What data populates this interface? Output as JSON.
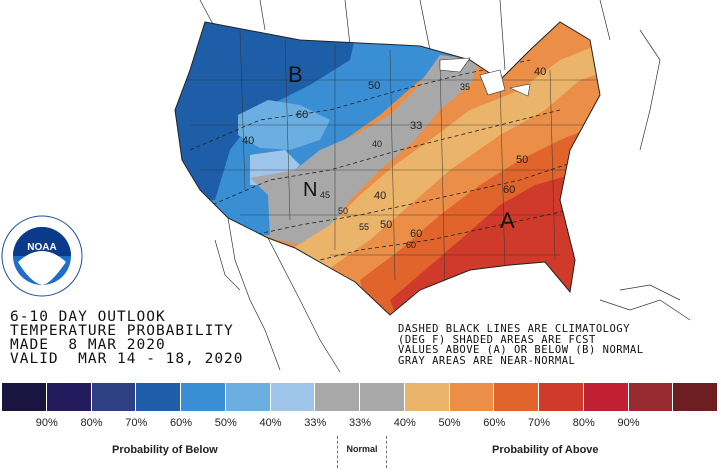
{
  "map": {
    "letters": {
      "below": "B",
      "near_normal": "N",
      "above": "A"
    },
    "contour_labels": [
      "50",
      "60",
      "40",
      "33",
      "40",
      "35",
      "40",
      "50",
      "60",
      "45",
      "50",
      "40",
      "55",
      "50",
      "60",
      "60"
    ],
    "agency_logo_text": "NOAA"
  },
  "title_block": {
    "line1": "6-10 DAY OUTLOOK",
    "line2": "TEMPERATURE PROBABILITY",
    "line3": "MADE  8 MAR 2020",
    "line4": "VALID  MAR 14 - 18, 2020"
  },
  "notes": {
    "line1": "DASHED BLACK LINES ARE CLIMATOLOGY",
    "line2": "(DEG F) SHADED AREAS ARE FCST",
    "line3": "VALUES ABOVE (A) OR BELOW (B) NORMAL",
    "line4": "GRAY AREAS ARE NEAR-NORMAL"
  },
  "legend": {
    "colors": [
      "#1a1440",
      "#241a5e",
      "#2e3f82",
      "#1e5ea8",
      "#3a8fd4",
      "#6aaee2",
      "#9fc6ea",
      "#a8a8a8",
      "#a8a8a8",
      "#eab46a",
      "#ea8e48",
      "#e0642c",
      "#d03a2a",
      "#c02032",
      "#982a32",
      "#6c1e20"
    ],
    "percent_labels": [
      "90%",
      "80%",
      "70%",
      "60%",
      "50%",
      "40%",
      "33%",
      "33%",
      "40%",
      "50%",
      "60%",
      "70%",
      "80%",
      "90%"
    ],
    "below_label": "Probability of Below",
    "normal_label": "Normal",
    "above_label": "Probability of Above"
  }
}
